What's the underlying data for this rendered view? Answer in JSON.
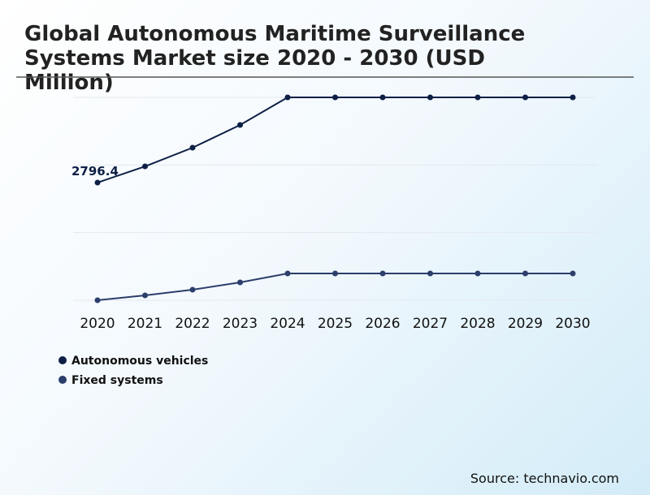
{
  "chart_data": {
    "type": "line",
    "title_lines": [
      "Global Autonomous Maritime Surveillance",
      "Systems Market size 2020 - 2030 (USD",
      "Million)"
    ],
    "categories": [
      "2020",
      "2021",
      "2022",
      "2023",
      "2024",
      "2025",
      "2026",
      "2027",
      "2028",
      "2029",
      "2030"
    ],
    "series": [
      {
        "name": "Autonomous vehicles",
        "color": "#0d1f45",
        "values": [
          2796.4,
          3182,
          3626,
          4166,
          4822,
          4822,
          4822,
          4822,
          4822,
          4822,
          4822
        ]
      },
      {
        "name": "Fixed systems",
        "color": "#2c3e6b",
        "values": [
          0,
          116,
          251,
          424,
          637,
          637,
          637,
          637,
          637,
          637,
          637
        ]
      }
    ],
    "ylim": [
      0,
      4822
    ],
    "yticks": [
      0,
      1607,
      3214,
      4822
    ],
    "grid": true,
    "source": "Source: technavio.com"
  }
}
